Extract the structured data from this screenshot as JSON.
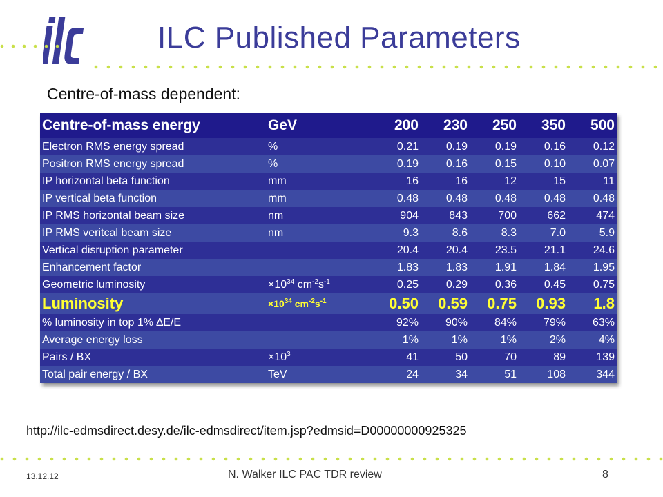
{
  "title": "ILC Published Parameters",
  "subtitle": "Centre-of-mass dependent:",
  "colors": {
    "title": "#3b3c99",
    "header": "#1f1a8c",
    "row_dark": "#2e2f96",
    "row_light": "#3d4aa3",
    "highlight_text": "#ffff33",
    "logo": "#3b3c99",
    "dots": "#c9e04a"
  },
  "table": {
    "header": {
      "label": "Centre-of-mass energy",
      "unit": "GeV",
      "values": [
        "200",
        "230",
        "250",
        "350",
        "500"
      ]
    },
    "rows": [
      {
        "label": "Electron RMS energy spread",
        "unit": "%",
        "values": [
          "0.21",
          "0.19",
          "0.19",
          "0.16",
          "0.12"
        ]
      },
      {
        "label": "Positron RMS energy spread",
        "unit": "%",
        "values": [
          "0.19",
          "0.16",
          "0.15",
          "0.10",
          "0.07"
        ]
      },
      {
        "label": "IP horizontal beta function",
        "unit": "mm",
        "values": [
          "16",
          "16",
          "12",
          "15",
          "11"
        ]
      },
      {
        "label": "IP vertical beta function",
        "unit": "mm",
        "values": [
          "0.48",
          "0.48",
          "0.48",
          "0.48",
          "0.48"
        ]
      },
      {
        "label": "IP RMS horizontal beam size",
        "unit": "nm",
        "values": [
          "904",
          "843",
          "700",
          "662",
          "474"
        ]
      },
      {
        "label": "IP RMS veritcal beam size",
        "unit": "nm",
        "values": [
          "9.3",
          "8.6",
          "8.3",
          "7.0",
          "5.9"
        ]
      },
      {
        "label": "Vertical disruption parameter",
        "unit": "",
        "values": [
          "20.4",
          "20.4",
          "23.5",
          "21.1",
          "24.6"
        ]
      },
      {
        "label": "Enhancement factor",
        "unit": "",
        "values": [
          "1.83",
          "1.83",
          "1.91",
          "1.84",
          "1.95"
        ]
      },
      {
        "label": "Geometric luminosity",
        "unit_parts": [
          "×10",
          "34",
          " cm",
          "-2",
          "s",
          "-1"
        ],
        "values": [
          "0.25",
          "0.29",
          "0.36",
          "0.45",
          "0.75"
        ]
      },
      {
        "label": "Luminosity",
        "unit_parts": [
          "×10",
          "34",
          " cm",
          "-2",
          "s",
          "-1"
        ],
        "values": [
          "0.50",
          "0.59",
          "0.75",
          "0.93",
          "1.8"
        ],
        "highlight": true
      },
      {
        "label": "% luminosity in top 1% ∆E/E",
        "unit": "",
        "values": [
          "92%",
          "90%",
          "84%",
          "79%",
          "63%"
        ]
      },
      {
        "label": "Average energy loss",
        "unit": "",
        "values": [
          "1%",
          "1%",
          "1%",
          "2%",
          "4%"
        ]
      },
      {
        "label": "Pairs / BX",
        "unit_parts": [
          "×10",
          "3"
        ],
        "values": [
          "41",
          "50",
          "70",
          "89",
          "139"
        ]
      },
      {
        "label": "Total pair energy / BX",
        "unit": "TeV",
        "values": [
          "24",
          "34",
          "51",
          "108",
          "344"
        ]
      }
    ]
  },
  "url": "http://ilc-edmsdirect.desy.de/ilc-edmsdirect/item.jsp?edmsid=D00000000925325",
  "footer": {
    "date": "13.12.12",
    "center": "N. Walker ILC PAC TDR review",
    "page": "8"
  }
}
